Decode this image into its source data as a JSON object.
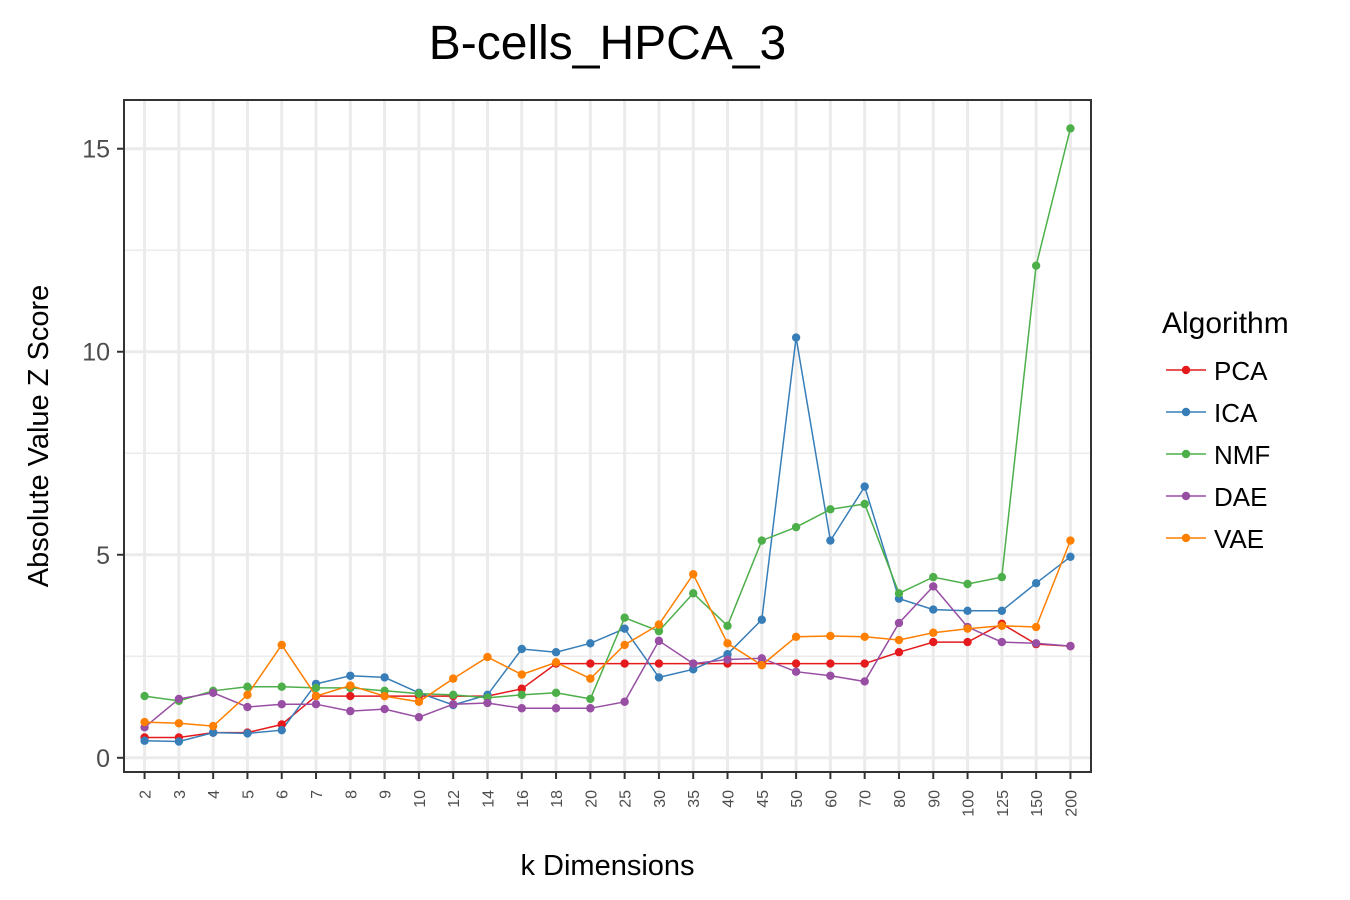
{
  "chart_data": {
    "type": "line",
    "title": "B-cells_HPCA_3",
    "xlabel": "k Dimensions",
    "ylabel": "Absolute Value Z Score",
    "categories": [
      "2",
      "3",
      "4",
      "5",
      "6",
      "7",
      "8",
      "9",
      "10",
      "12",
      "14",
      "16",
      "18",
      "20",
      "25",
      "30",
      "35",
      "40",
      "45",
      "50",
      "60",
      "70",
      "80",
      "90",
      "100",
      "125",
      "150",
      "200"
    ],
    "ylim": [
      -0.35,
      16.2
    ],
    "yticks": [
      0,
      5,
      10,
      15
    ],
    "grid": true,
    "legend_title": "Algorithm",
    "legend_position": "right",
    "series": [
      {
        "name": "PCA",
        "color": "#e41a1c",
        "values": [
          0.5,
          0.5,
          0.62,
          0.62,
          0.82,
          1.52,
          1.52,
          1.52,
          1.52,
          1.52,
          1.52,
          1.7,
          2.32,
          2.32,
          2.32,
          2.32,
          2.32,
          2.32,
          2.32,
          2.32,
          2.32,
          2.32,
          2.6,
          2.85,
          2.85,
          3.3,
          2.8,
          2.75
        ]
      },
      {
        "name": "ICA",
        "color": "#377eb8",
        "values": [
          0.42,
          0.4,
          0.62,
          0.6,
          0.68,
          1.82,
          2.02,
          1.98,
          1.6,
          1.3,
          1.55,
          2.68,
          2.6,
          2.82,
          3.18,
          1.98,
          2.18,
          2.55,
          3.4,
          10.35,
          5.35,
          6.68,
          3.92,
          3.65,
          3.62,
          3.62,
          4.3,
          4.95
        ]
      },
      {
        "name": "NMF",
        "color": "#4daf4a",
        "values": [
          1.52,
          1.4,
          1.65,
          1.75,
          1.75,
          1.72,
          1.72,
          1.65,
          1.58,
          1.55,
          1.48,
          1.55,
          1.6,
          1.45,
          3.45,
          3.12,
          4.05,
          3.25,
          5.35,
          5.68,
          6.12,
          6.25,
          4.05,
          4.45,
          4.28,
          4.45,
          12.12,
          15.5
        ]
      },
      {
        "name": "DAE",
        "color": "#984ea3",
        "values": [
          0.75,
          1.45,
          1.6,
          1.25,
          1.32,
          1.32,
          1.15,
          1.2,
          1.0,
          1.32,
          1.35,
          1.22,
          1.22,
          1.22,
          1.38,
          2.88,
          2.32,
          2.42,
          2.45,
          2.12,
          2.02,
          1.88,
          3.32,
          4.22,
          3.22,
          2.85,
          2.82,
          2.75
        ]
      },
      {
        "name": "VAE",
        "color": "#ff7f00",
        "values": [
          0.88,
          0.85,
          0.78,
          1.55,
          2.78,
          1.52,
          1.78,
          1.52,
          1.38,
          1.95,
          2.48,
          2.05,
          2.35,
          1.95,
          2.78,
          3.28,
          4.52,
          2.82,
          2.28,
          2.98,
          3.0,
          2.98,
          2.9,
          3.08,
          3.18,
          3.25,
          3.22,
          5.35
        ]
      }
    ]
  }
}
